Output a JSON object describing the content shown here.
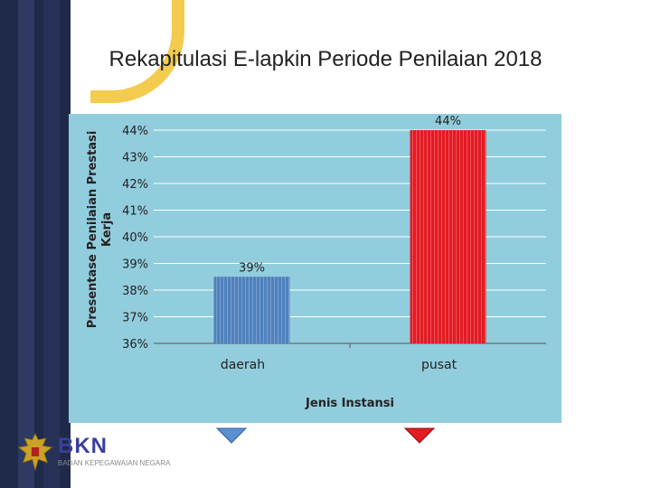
{
  "slide": {
    "title": "Rekapitulasi E-lapkin Periode Penilaian 2018"
  },
  "logo": {
    "text": "BKN",
    "subtitle": "BADAN KEPEGAWAIAN NEGARA"
  },
  "colors": {
    "chart_background": "#92cddd",
    "bar_daerah": "#4f81bd",
    "bar_pusat": "#e31b23",
    "left_band": "#1f2a4a",
    "accent_yellow": "#f2c230",
    "arrow_blue": "#5b8fd0",
    "arrow_red": "#e31b23"
  },
  "chart_data": {
    "type": "bar",
    "title": "",
    "categories": [
      "daerah",
      "pusat"
    ],
    "values": [
      38.5,
      44
    ],
    "data_labels": [
      "39%",
      "44%"
    ],
    "xlabel": "Jenis Instansi",
    "ylabel": "Presentase Penilaian Prestasi Kerja",
    "ylim": [
      36,
      44
    ],
    "yticks": [
      "36%",
      "37%",
      "38%",
      "39%",
      "40%",
      "41%",
      "42%",
      "43%",
      "44%"
    ],
    "grid": true,
    "legend": "none"
  },
  "icons": {
    "down_arrow_left": "arrow-down-icon",
    "down_arrow_right": "arrow-down-icon"
  }
}
